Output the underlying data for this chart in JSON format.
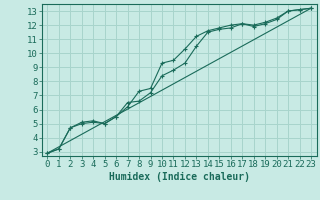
{
  "xlabel": "Humidex (Indice chaleur)",
  "ylabel": "",
  "xlim": [
    -0.5,
    23.5
  ],
  "ylim": [
    2.7,
    13.5
  ],
  "xticks": [
    0,
    1,
    2,
    3,
    4,
    5,
    6,
    7,
    8,
    9,
    10,
    11,
    12,
    13,
    14,
    15,
    16,
    17,
    18,
    19,
    20,
    21,
    22,
    23
  ],
  "yticks": [
    3,
    4,
    5,
    6,
    7,
    8,
    9,
    10,
    11,
    12,
    13
  ],
  "background_color": "#c8eae4",
  "grid_color": "#a8d4cc",
  "line_color": "#1a6b5a",
  "line1_x": [
    0,
    1,
    2,
    3,
    4,
    5,
    6,
    7,
    8,
    9,
    10,
    11,
    12,
    13,
    14,
    15,
    16,
    17,
    18,
    19,
    20,
    21,
    22,
    23
  ],
  "line1_y": [
    2.9,
    3.2,
    4.7,
    5.0,
    5.1,
    5.0,
    5.5,
    6.5,
    6.6,
    7.2,
    8.4,
    8.8,
    9.3,
    10.5,
    11.5,
    11.7,
    11.8,
    12.1,
    11.9,
    12.1,
    12.4,
    13.0,
    13.1,
    13.2
  ],
  "line2_x": [
    0,
    1,
    2,
    3,
    4,
    5,
    6,
    7,
    8,
    9,
    10,
    11,
    12,
    13,
    14,
    15,
    16,
    17,
    18,
    19,
    20,
    21,
    22,
    23
  ],
  "line2_y": [
    2.9,
    3.2,
    4.7,
    5.1,
    5.2,
    5.0,
    5.5,
    6.2,
    7.3,
    7.5,
    9.3,
    9.5,
    10.3,
    11.2,
    11.6,
    11.8,
    12.0,
    12.1,
    12.0,
    12.2,
    12.5,
    13.0,
    13.1,
    13.2
  ],
  "line3_x": [
    0,
    23
  ],
  "line3_y": [
    2.9,
    13.2
  ],
  "font_size_label": 7,
  "font_size_tick": 6.5
}
